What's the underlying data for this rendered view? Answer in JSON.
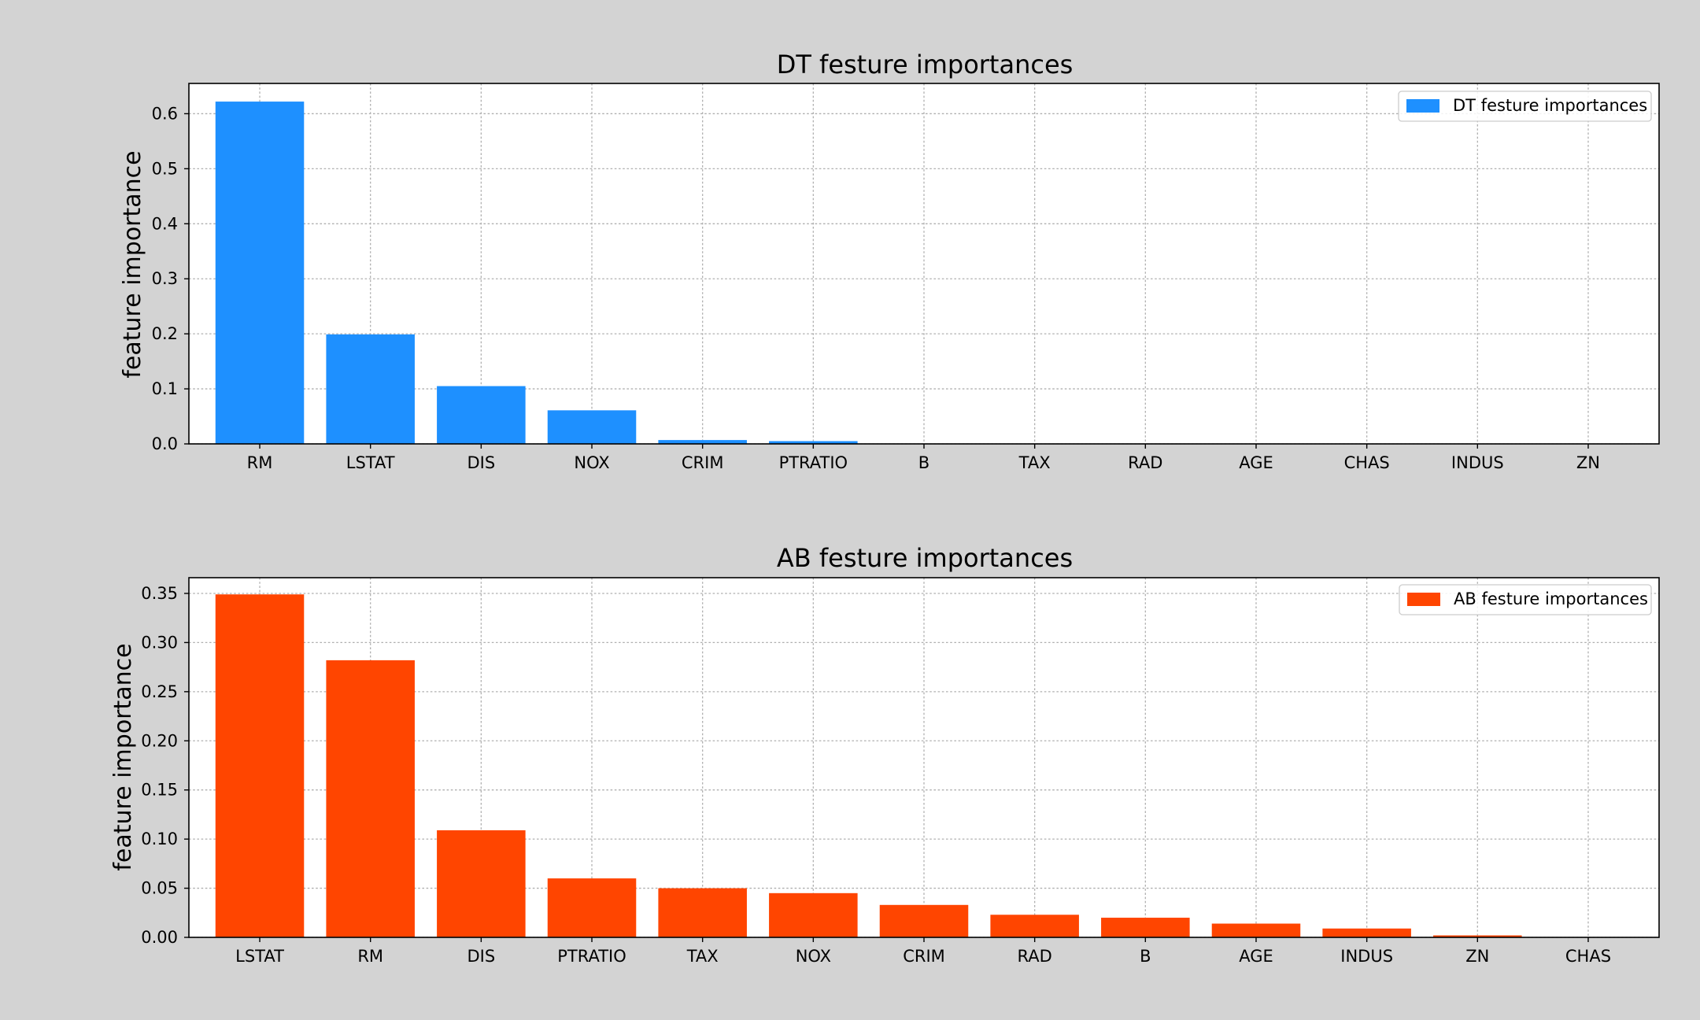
{
  "chart_data": [
    {
      "type": "bar",
      "title": "DT festure importances",
      "xlabel": "",
      "ylabel": "feature importance",
      "categories": [
        "RM",
        "LSTAT",
        "DIS",
        "NOX",
        "CRIM",
        "PTRATIO",
        "B",
        "TAX",
        "RAD",
        "AGE",
        "CHAS",
        "INDUS",
        "ZN"
      ],
      "series": [
        {
          "name": "DT festure importances",
          "values": [
            0.622,
            0.199,
            0.105,
            0.061,
            0.007,
            0.005,
            0.0,
            0.0,
            0.0,
            0.0,
            0.0,
            0.0,
            0.0
          ]
        }
      ],
      "ylim": [
        0,
        0.655
      ],
      "yticks": [
        "0.0",
        "0.1",
        "0.2",
        "0.3",
        "0.4",
        "0.5",
        "0.6"
      ],
      "grid": true,
      "legend": "top-right",
      "color": "#1e90ff"
    },
    {
      "type": "bar",
      "title": "AB festure importances",
      "xlabel": "",
      "ylabel": "feature importance",
      "categories": [
        "LSTAT",
        "RM",
        "DIS",
        "PTRATIO",
        "TAX",
        "NOX",
        "CRIM",
        "RAD",
        "B",
        "AGE",
        "INDUS",
        "ZN",
        "CHAS"
      ],
      "series": [
        {
          "name": "AB festure importances",
          "values": [
            0.349,
            0.282,
            0.109,
            0.06,
            0.05,
            0.045,
            0.033,
            0.023,
            0.02,
            0.014,
            0.009,
            0.002,
            0.0
          ]
        }
      ],
      "ylim": [
        0,
        0.366
      ],
      "yticks": [
        "0.00",
        "0.05",
        "0.10",
        "0.15",
        "0.20",
        "0.25",
        "0.30",
        "0.35"
      ],
      "grid": true,
      "legend": "top-right",
      "color": "#ff4500"
    }
  ]
}
